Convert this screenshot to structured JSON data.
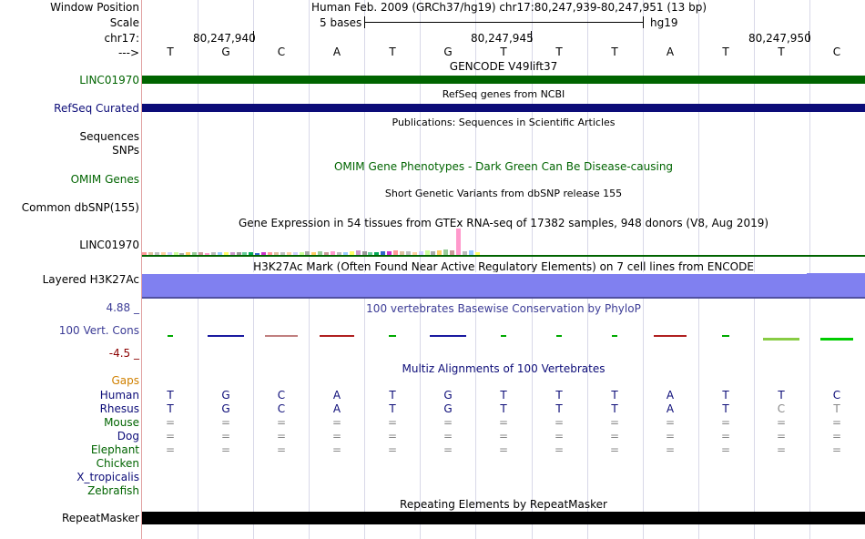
{
  "header": {
    "window_position_label": "Window Position",
    "window_position_value": "Human Feb. 2009 (GRCh37/hg19)   chr17:80,247,939-80,247,951 (13 bp)",
    "scale_label": "Scale",
    "scale_text": "5 bases",
    "scale_db": "hg19",
    "chrom_label": "chr17:",
    "strand_label": "--->",
    "positions": [
      "80,247,940",
      "80,247,945",
      "80,247,950"
    ]
  },
  "sequence": [
    "T",
    "G",
    "C",
    "A",
    "T",
    "G",
    "T",
    "T",
    "T",
    "A",
    "T",
    "T",
    "C"
  ],
  "tracks": {
    "gencode": {
      "title": "GENCODE V49lift37",
      "label": "LINC01970",
      "color": "#006400"
    },
    "refseq": {
      "title": "RefSeq genes from NCBI",
      "label": "RefSeq Curated",
      "color": "#0c0c78"
    },
    "publications": {
      "title": "Publications: Sequences in Scientific Articles",
      "label_1": "Sequences",
      "label_2": "SNPs"
    },
    "omim": {
      "title": "OMIM Gene Phenotypes - Dark Green Can Be Disease-causing",
      "label": "OMIM Genes",
      "color": "#006400"
    },
    "dbsnp": {
      "title": "Short Genetic Variants from dbSNP release 155",
      "label": "Common dbSNP(155)"
    },
    "gtex": {
      "title": "Gene Expression in 54 tissues from GTEx RNA-seq of 17382 samples, 948 donors (V8, Aug 2019)",
      "label": "LINC01970"
    },
    "h3k27ac": {
      "title": "H3K27Ac Mark (Often Found Near Active Regulatory Elements) on 7 cell lines from ENCODE",
      "label": "Layered H3K27Ac",
      "color": "#8080f0"
    },
    "phylop": {
      "title": "100 vertebrates Basewise Conservation by PhyloP",
      "label": "100 Vert. Cons",
      "max": "4.88 _",
      "min": "-4.5 _"
    },
    "multiz": {
      "title": "Multiz Alignments of 100 Vertebrates",
      "gaps_label": "Gaps"
    },
    "repeatmasker": {
      "title": "Repeating Elements by RepeatMasker",
      "label": "RepeatMasker"
    }
  },
  "species": [
    {
      "name": "Human",
      "color": "#0c0c78",
      "bases": [
        "T",
        "G",
        "C",
        "A",
        "T",
        "G",
        "T",
        "T",
        "T",
        "A",
        "T",
        "T",
        "C"
      ]
    },
    {
      "name": "Rhesus",
      "color": "#0c0c78",
      "bases": [
        "T",
        "G",
        "C",
        "A",
        "T",
        "G",
        "T",
        "T",
        "T",
        "A",
        "T",
        "C",
        "T"
      ]
    },
    {
      "name": "Mouse",
      "color": "#006400",
      "bases": [
        "=",
        "=",
        "=",
        "=",
        "=",
        "=",
        "=",
        "=",
        "=",
        "=",
        "=",
        "=",
        "="
      ]
    },
    {
      "name": "Dog",
      "color": "#0c0c78",
      "bases": [
        "=",
        "=",
        "=",
        "=",
        "=",
        "=",
        "=",
        "=",
        "=",
        "=",
        "=",
        "=",
        "="
      ]
    },
    {
      "name": "Elephant",
      "color": "#006400",
      "bases": [
        "=",
        "=",
        "=",
        "=",
        "=",
        "=",
        "=",
        "=",
        "=",
        "=",
        "=",
        "=",
        "="
      ]
    },
    {
      "name": "Chicken",
      "color": "#006400",
      "bases": []
    },
    {
      "name": "X_tropicalis",
      "color": "#0c0c78",
      "bases": []
    },
    {
      "name": "Zebrafish",
      "color": "#006400",
      "bases": []
    }
  ]
}
